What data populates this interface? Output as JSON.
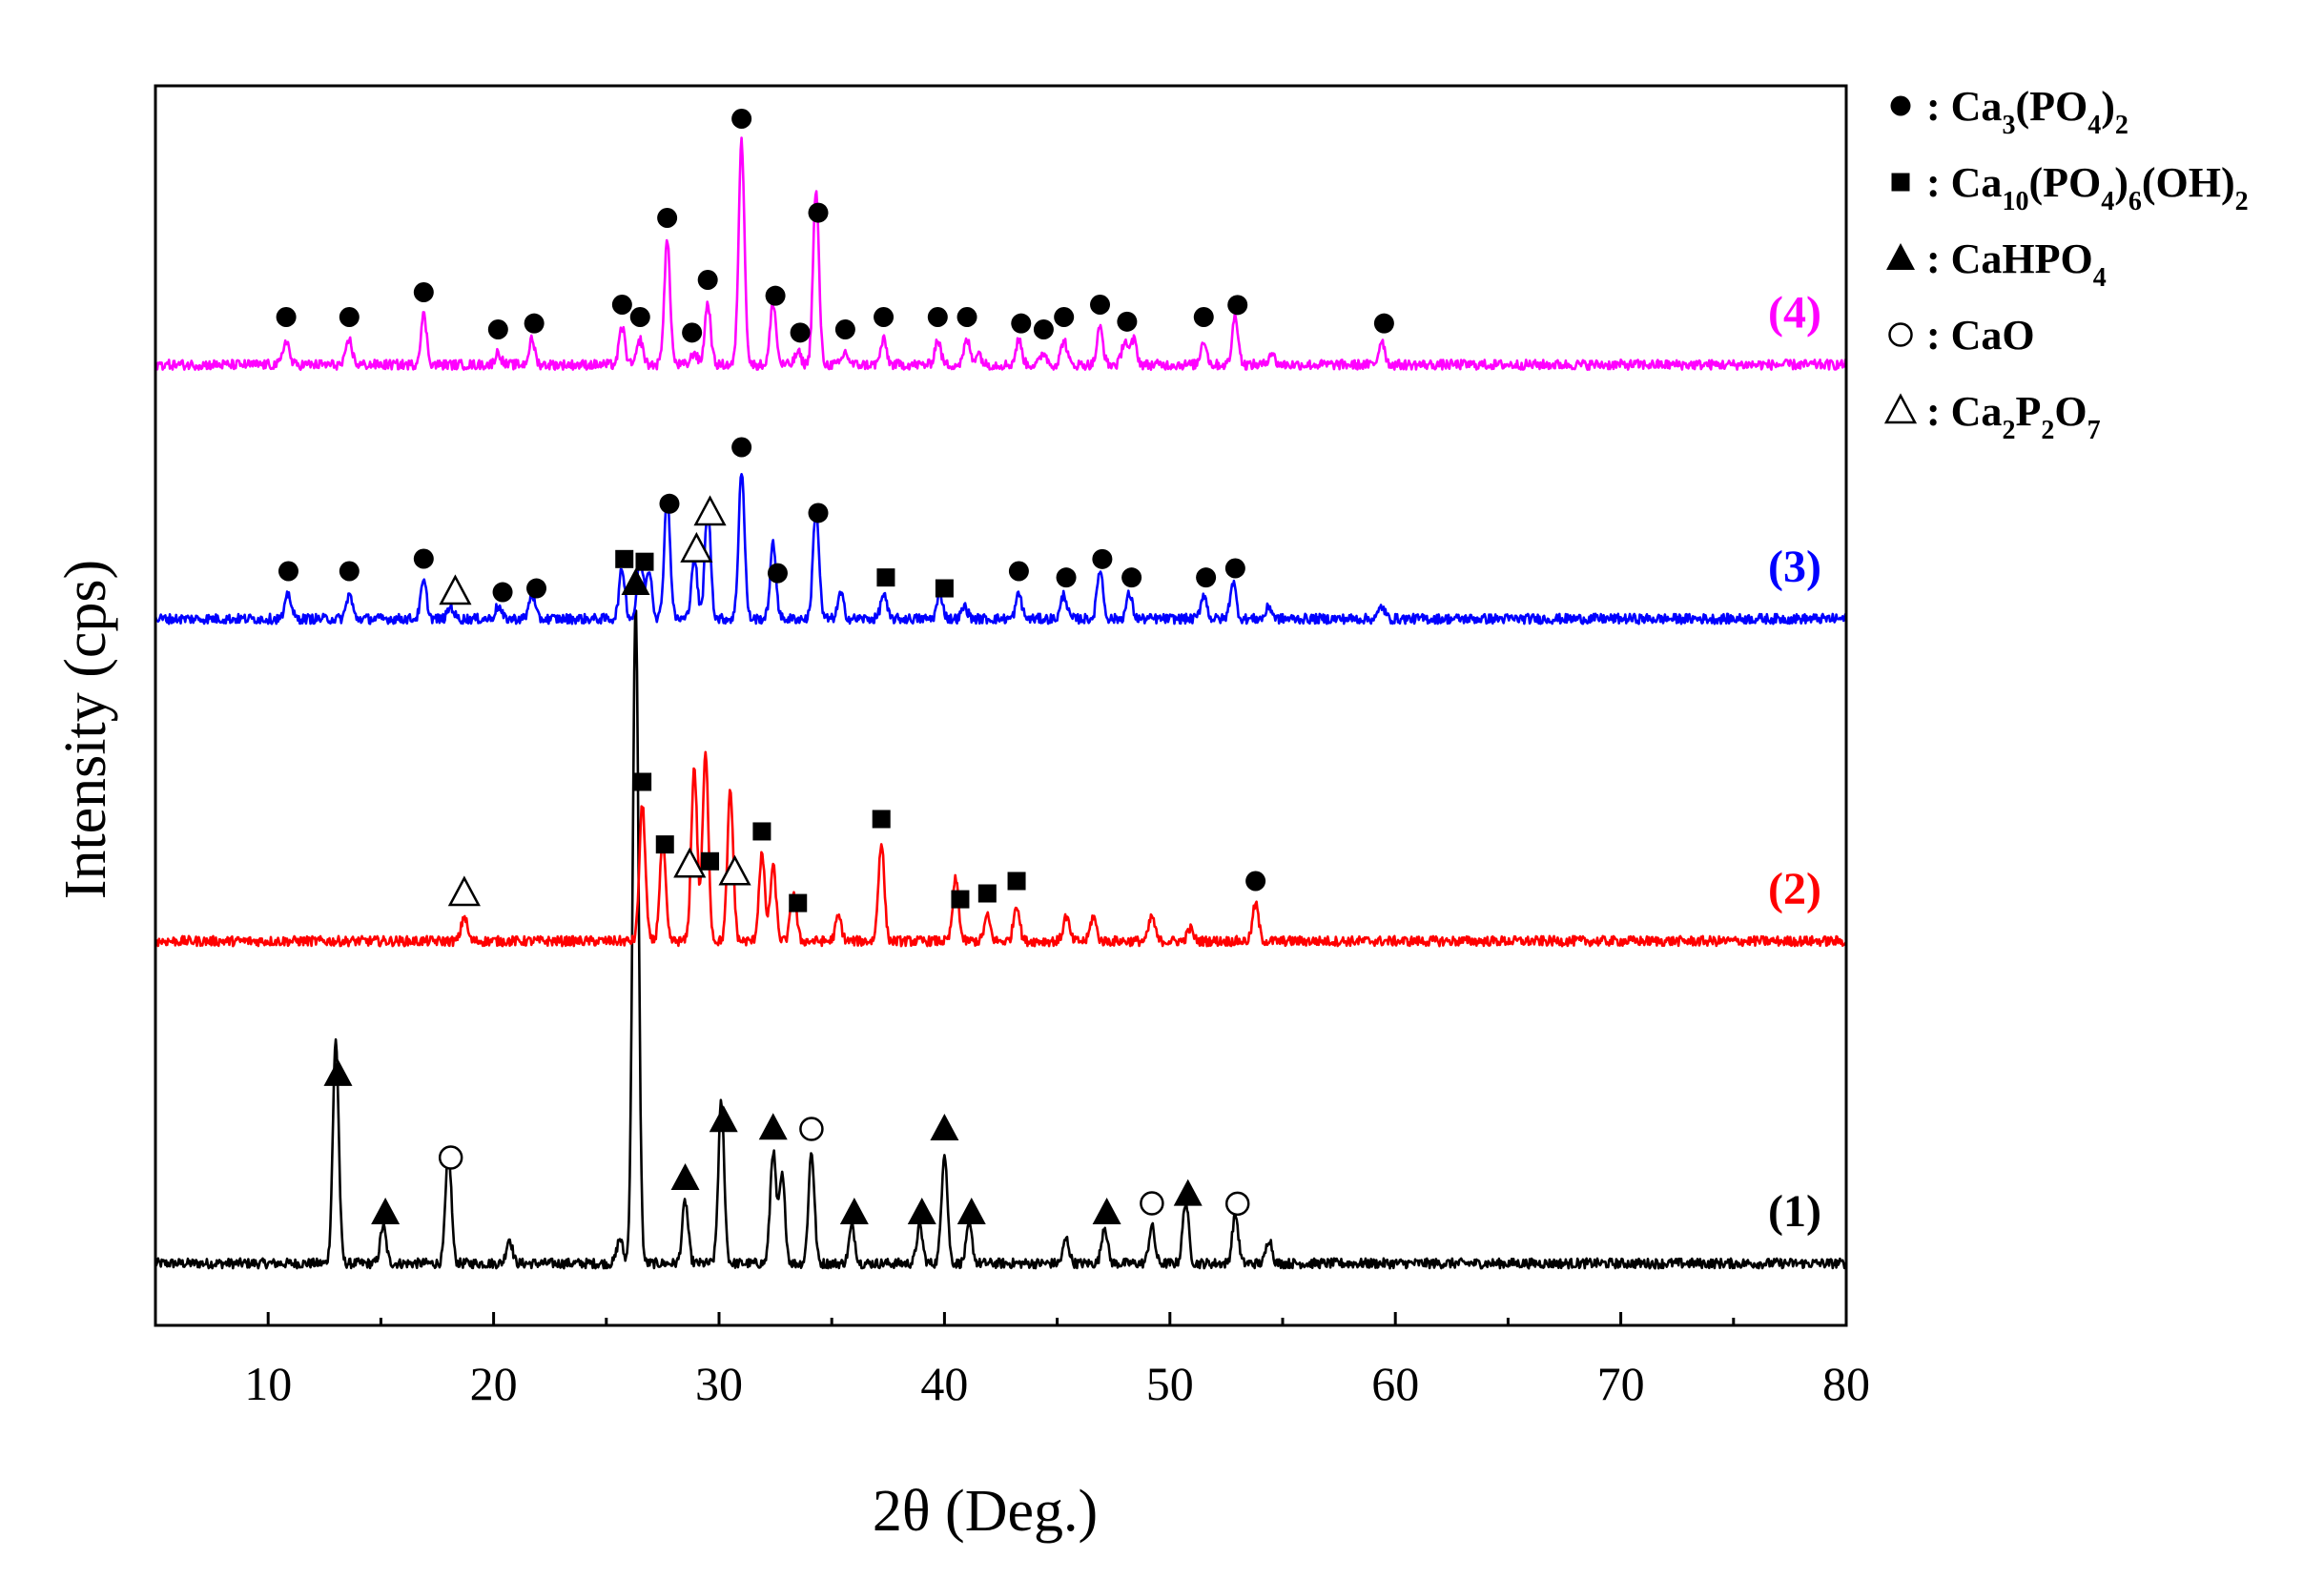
{
  "chart_data": {
    "type": "line",
    "xlabel": "2θ (Deg.)",
    "ylabel": "Intensity (cps)",
    "xlim": [
      5,
      80
    ],
    "xticks": [
      10,
      20,
      30,
      40,
      50,
      60,
      70,
      80
    ],
    "ylim": [
      0,
      100
    ],
    "grid": false,
    "legend_position": "right-outside-top",
    "legend": [
      {
        "marker": "filled-circle",
        "base": ": Ca",
        "parts": [
          [
            "3",
            "sub"
          ],
          [
            "(PO",
            ""
          ],
          [
            "4",
            "sub"
          ],
          [
            ")",
            ""
          ],
          [
            "2",
            "sub"
          ]
        ]
      },
      {
        "marker": "filled-square",
        "base": ": Ca",
        "parts": [
          [
            "10",
            "sub"
          ],
          [
            "(PO",
            ""
          ],
          [
            "4",
            "sub"
          ],
          [
            ")",
            ""
          ],
          [
            "6",
            "sub"
          ],
          [
            "(OH)",
            ""
          ],
          [
            "2",
            "sub"
          ]
        ]
      },
      {
        "marker": "filled-triangle",
        "base": ": CaHPO",
        "parts": [
          [
            "4",
            "sub"
          ]
        ]
      },
      {
        "marker": "open-circle",
        "base": ": CaO",
        "parts": []
      },
      {
        "marker": "open-triangle",
        "base": ": Ca",
        "parts": [
          [
            "2",
            "sub"
          ],
          [
            "P",
            ""
          ],
          [
            "2",
            "sub"
          ],
          [
            "O",
            ""
          ],
          [
            "7",
            "sub"
          ]
        ]
      }
    ],
    "series": [
      {
        "name": "(1)",
        "color": "#000000",
        "baseline": 5,
        "peaks": [
          [
            13.0,
            18
          ],
          [
            15.1,
            3
          ],
          [
            18.0,
            9
          ],
          [
            20.7,
            2
          ],
          [
            25.6,
            2
          ],
          [
            26.3,
            53
          ],
          [
            28.5,
            5
          ],
          [
            30.1,
            13
          ],
          [
            32.4,
            9
          ],
          [
            32.8,
            7
          ],
          [
            34.1,
            9
          ],
          [
            35.9,
            3
          ],
          [
            38.9,
            3
          ],
          [
            40.0,
            9
          ],
          [
            41.1,
            3
          ],
          [
            45.4,
            2
          ],
          [
            47.1,
            3
          ],
          [
            49.2,
            3
          ],
          [
            50.7,
            5
          ],
          [
            52.9,
            4
          ],
          [
            54.4,
            2
          ]
        ],
        "markers": [
          [
            13.1,
            "filled-triangle"
          ],
          [
            15.2,
            "filled-triangle"
          ],
          [
            18.1,
            "open-circle"
          ],
          [
            26.3,
            "filled-triangle"
          ],
          [
            28.5,
            "filled-triangle"
          ],
          [
            30.2,
            "filled-triangle"
          ],
          [
            32.4,
            "filled-triangle"
          ],
          [
            34.1,
            "open-circle"
          ],
          [
            36.0,
            "filled-triangle"
          ],
          [
            39.0,
            "filled-triangle"
          ],
          [
            40.0,
            "filled-triangle"
          ],
          [
            41.2,
            "filled-triangle"
          ],
          [
            47.2,
            "filled-triangle"
          ],
          [
            49.2,
            "open-circle"
          ],
          [
            50.8,
            "filled-triangle"
          ],
          [
            53.0,
            "open-circle"
          ]
        ]
      },
      {
        "name": "(2)",
        "color": "#ff0000",
        "baseline": 31,
        "peaks": [
          [
            18.7,
            2
          ],
          [
            26.6,
            11
          ],
          [
            27.5,
            8
          ],
          [
            28.9,
            14
          ],
          [
            29.4,
            15
          ],
          [
            30.5,
            12
          ],
          [
            31.9,
            7
          ],
          [
            32.4,
            6
          ],
          [
            33.3,
            4
          ],
          [
            35.3,
            2
          ],
          [
            37.2,
            8
          ],
          [
            40.5,
            5
          ],
          [
            41.9,
            2
          ],
          [
            43.2,
            3
          ],
          [
            45.4,
            2
          ],
          [
            46.6,
            2
          ],
          [
            49.2,
            2
          ],
          [
            50.9,
            1
          ],
          [
            53.8,
            3
          ]
        ],
        "markers": [
          [
            18.7,
            "open-triangle"
          ],
          [
            26.6,
            "filled-square"
          ],
          [
            27.6,
            "filled-square"
          ],
          [
            28.7,
            "open-triangle"
          ],
          [
            29.6,
            "filled-square"
          ],
          [
            30.7,
            "open-triangle"
          ],
          [
            31.9,
            "filled-square"
          ],
          [
            33.5,
            "filled-square"
          ],
          [
            37.2,
            "filled-square"
          ],
          [
            40.7,
            "filled-square"
          ],
          [
            41.9,
            "filled-square"
          ],
          [
            43.2,
            "filled-square"
          ],
          [
            53.8,
            "filled-circle"
          ]
        ]
      },
      {
        "name": "(3)",
        "color": "#0000ff",
        "baseline": 57,
        "peaks": [
          [
            10.9,
            2
          ],
          [
            13.6,
            2
          ],
          [
            16.9,
            3
          ],
          [
            18.1,
            1
          ],
          [
            20.2,
            1
          ],
          [
            21.7,
            2
          ],
          [
            25.7,
            4
          ],
          [
            26.5,
            5
          ],
          [
            26.9,
            4
          ],
          [
            27.7,
            10
          ],
          [
            28.9,
            5
          ],
          [
            29.5,
            9
          ],
          [
            31.0,
            12
          ],
          [
            32.4,
            6
          ],
          [
            34.3,
            9
          ],
          [
            35.4,
            2
          ],
          [
            37.3,
            2
          ],
          [
            39.8,
            2
          ],
          [
            40.9,
            1
          ],
          [
            43.3,
            2
          ],
          [
            45.3,
            2
          ],
          [
            46.9,
            4
          ],
          [
            48.2,
            2
          ],
          [
            51.5,
            2
          ],
          [
            52.8,
            3
          ],
          [
            54.4,
            1
          ],
          [
            59.4,
            1
          ]
        ],
        "markers": [
          [
            10.9,
            "filled-circle"
          ],
          [
            13.6,
            "filled-circle"
          ],
          [
            16.9,
            "filled-circle"
          ],
          [
            18.3,
            "open-triangle"
          ],
          [
            20.4,
            "filled-circle"
          ],
          [
            21.9,
            "filled-circle"
          ],
          [
            25.8,
            "filled-square"
          ],
          [
            26.7,
            "filled-square"
          ],
          [
            27.8,
            "filled-circle"
          ],
          [
            29.0,
            "open-triangle"
          ],
          [
            29.6,
            "open-triangle"
          ],
          [
            31.0,
            "filled-circle"
          ],
          [
            32.6,
            "filled-circle"
          ],
          [
            34.4,
            "filled-circle"
          ],
          [
            37.4,
            "filled-square"
          ],
          [
            40.0,
            "filled-square"
          ],
          [
            43.3,
            "filled-circle"
          ],
          [
            45.4,
            "filled-circle"
          ],
          [
            47.0,
            "filled-circle"
          ],
          [
            48.3,
            "filled-circle"
          ],
          [
            51.6,
            "filled-circle"
          ],
          [
            52.9,
            "filled-circle"
          ]
        ]
      },
      {
        "name": "(4)",
        "color": "#ff00ff",
        "baseline": 77.5,
        "peaks": [
          [
            10.8,
            2
          ],
          [
            13.6,
            2
          ],
          [
            16.9,
            4
          ],
          [
            20.2,
            1
          ],
          [
            21.7,
            2
          ],
          [
            25.7,
            3
          ],
          [
            26.5,
            2
          ],
          [
            27.7,
            10
          ],
          [
            28.9,
            1
          ],
          [
            29.5,
            5
          ],
          [
            31.0,
            18
          ],
          [
            32.4,
            5
          ],
          [
            33.5,
            1
          ],
          [
            34.3,
            14
          ],
          [
            35.6,
            1
          ],
          [
            37.3,
            2
          ],
          [
            39.7,
            2
          ],
          [
            41.0,
            2
          ],
          [
            41.5,
            1
          ],
          [
            43.3,
            2
          ],
          [
            44.4,
            1
          ],
          [
            45.3,
            2
          ],
          [
            46.9,
            3
          ],
          [
            48.0,
            2
          ],
          [
            48.4,
            2
          ],
          [
            51.5,
            2
          ],
          [
            52.9,
            4
          ],
          [
            54.5,
            1
          ],
          [
            59.4,
            2
          ]
        ],
        "markers": [
          [
            10.8,
            "filled-circle"
          ],
          [
            13.6,
            "filled-circle"
          ],
          [
            16.9,
            "filled-circle"
          ],
          [
            20.2,
            "filled-circle"
          ],
          [
            21.8,
            "filled-circle"
          ],
          [
            25.7,
            "filled-circle"
          ],
          [
            26.5,
            "filled-circle"
          ],
          [
            27.7,
            "filled-circle"
          ],
          [
            28.8,
            "filled-circle"
          ],
          [
            29.5,
            "filled-circle"
          ],
          [
            31.0,
            "filled-circle"
          ],
          [
            32.5,
            "filled-circle"
          ],
          [
            33.6,
            "filled-circle"
          ],
          [
            34.4,
            "filled-circle"
          ],
          [
            35.6,
            "filled-circle"
          ],
          [
            37.3,
            "filled-circle"
          ],
          [
            39.7,
            "filled-circle"
          ],
          [
            41.0,
            "filled-circle"
          ],
          [
            43.4,
            "filled-circle"
          ],
          [
            44.4,
            "filled-circle"
          ],
          [
            45.3,
            "filled-circle"
          ],
          [
            46.9,
            "filled-circle"
          ],
          [
            48.1,
            "filled-circle"
          ],
          [
            51.5,
            "filled-circle"
          ],
          [
            53.0,
            "filled-circle"
          ],
          [
            59.5,
            "filled-circle"
          ]
        ]
      }
    ]
  }
}
